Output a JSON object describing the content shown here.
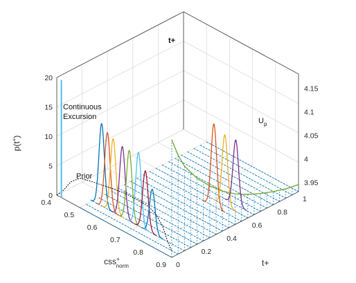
{
  "chart_data": {
    "type": "line",
    "projection": "3d",
    "grid": true,
    "axes": {
      "css_norm": {
        "label": "css",
        "label_sup": "+",
        "label_sub": "norm",
        "range": [
          0.4,
          0.9
        ],
        "ticks": [
          "0.4",
          "0.5",
          "0.6",
          "0.7",
          "0.8",
          "0.9"
        ]
      },
      "t_plus": {
        "label": "t+",
        "range": [
          0,
          1
        ],
        "ticks": [
          "0",
          "0.2",
          "0.4",
          "0.6",
          "0.8",
          "1"
        ]
      },
      "p": {
        "label": "p(t",
        "label_sup": "+",
        "label_end": ")",
        "range": [
          0,
          20
        ],
        "ticks": [
          "0",
          "5",
          "10",
          "15",
          "20"
        ]
      },
      "right": {
        "range": [
          3.93,
          4.18
        ],
        "ticks": [
          "3.95",
          "4",
          "4.05",
          "4.1",
          "4.15"
        ]
      }
    },
    "annotations": {
      "continuous_line1": "Continuous",
      "continuous_line2": "Excursion",
      "prior": "Prior",
      "t_plus": "t+",
      "u_main": "U",
      "u_sub": "p"
    },
    "continuous_excursion": {
      "css": 0.42,
      "p_top": 20,
      "color": "#4dbeee"
    },
    "prior": {
      "color": "#000000",
      "points": [
        [
          0.4,
          0
        ],
        [
          0.43,
          1.5
        ],
        [
          0.46,
          3.5
        ],
        [
          0.5,
          5
        ],
        [
          0.55,
          5.5
        ],
        [
          0.6,
          5.9
        ],
        [
          0.65,
          6.3
        ],
        [
          0.7,
          6.6
        ],
        [
          0.75,
          6.6
        ],
        [
          0.8,
          6.5
        ],
        [
          0.83,
          5.9
        ],
        [
          0.86,
          4.5
        ],
        [
          0.88,
          2.5
        ],
        [
          0.9,
          1
        ]
      ]
    },
    "peaks": [
      {
        "css": 0.54,
        "t": 0.1,
        "height": 14.0,
        "color": "#0072bd"
      },
      {
        "css": 0.565,
        "t": 0.1,
        "height": 13.0,
        "color": "#d95319"
      },
      {
        "css": 0.59,
        "t": 0.1,
        "height": 12.5,
        "color": "#edb120"
      },
      {
        "css": 0.63,
        "t": 0.1,
        "height": 12.0,
        "color": "#7e2f8e"
      },
      {
        "css": 0.66,
        "t": 0.1,
        "height": 12.0,
        "color": "#77ac30"
      },
      {
        "css": 0.7,
        "t": 0.1,
        "height": 12.5,
        "color": "#4dbeee"
      },
      {
        "css": 0.73,
        "t": 0.1,
        "height": 10.0,
        "color": "#a2142f"
      },
      {
        "css": 0.76,
        "t": 0.1,
        "height": 7.5,
        "color": "#0072bd"
      },
      {
        "css": 0.78,
        "t": 0.55,
        "height": 14.0,
        "color": "#d95319"
      },
      {
        "css": 0.8,
        "t": 0.6,
        "height": 12.0,
        "color": "#edb120"
      },
      {
        "css": 0.82,
        "t": 0.65,
        "height": 11.0,
        "color": "#7e2f8e"
      }
    ],
    "t_lines": {
      "color": "#0072bd",
      "t_values": [
        0,
        0.05,
        0.1,
        0.15,
        0.2,
        0.25,
        0.3,
        0.35,
        0.4,
        0.45,
        0.5,
        0.55,
        0.6,
        0.65,
        0.7,
        0.75,
        0.8,
        0.85,
        0.9,
        0.95,
        1.0
      ]
    },
    "up_curve": {
      "color": "#77ac30",
      "points": [
        [
          0.0,
          4.18
        ],
        [
          0.05,
          4.14
        ],
        [
          0.1,
          4.11
        ],
        [
          0.2,
          4.07
        ],
        [
          0.3,
          4.04
        ],
        [
          0.4,
          4.015
        ],
        [
          0.5,
          3.995
        ],
        [
          0.6,
          3.98
        ],
        [
          0.7,
          3.968
        ],
        [
          0.8,
          3.958
        ],
        [
          0.9,
          3.95
        ],
        [
          1.0,
          3.945
        ]
      ]
    }
  }
}
